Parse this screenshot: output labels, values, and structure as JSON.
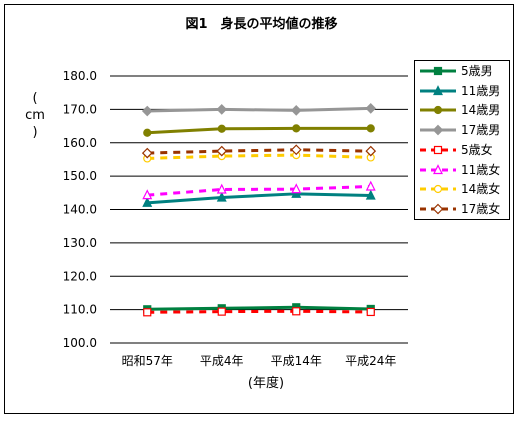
{
  "chart_data": {
    "type": "line",
    "title": "図1　身長の平均値の推移",
    "ylabel": "cm",
    "ylabel_open": "(",
    "ylabel_close": ")",
    "xlabel": "(年度)",
    "categories": [
      "昭和57年",
      "平成4年",
      "平成14年",
      "平成24年"
    ],
    "ylim": [
      100,
      180
    ],
    "yticks": [
      "100.0",
      "110.0",
      "120.0",
      "130.0",
      "140.0",
      "150.0",
      "160.0",
      "170.0",
      "180.0"
    ],
    "grid": "horizontal",
    "legend_position": "right",
    "series": [
      {
        "name": "5歳男",
        "values": [
          110.1,
          110.4,
          110.7,
          110.2
        ],
        "color": "#008040",
        "marker": "square",
        "dash": "solid",
        "filled": true
      },
      {
        "name": "11歳男",
        "values": [
          142.0,
          143.6,
          144.7,
          144.2
        ],
        "color": "#008080",
        "marker": "triangle",
        "dash": "solid",
        "filled": true
      },
      {
        "name": "14歳男",
        "values": [
          163.0,
          164.2,
          164.3,
          164.3
        ],
        "color": "#808000",
        "marker": "circle",
        "dash": "solid",
        "filled": true
      },
      {
        "name": "17歳男",
        "values": [
          169.5,
          170.0,
          169.7,
          170.3
        ],
        "color": "#969696",
        "marker": "diamond",
        "dash": "solid",
        "filled": true
      },
      {
        "name": "5歳女",
        "values": [
          109.2,
          109.4,
          109.5,
          109.3
        ],
        "color": "#ff0000",
        "marker": "square",
        "dash": "dashed",
        "filled": false
      },
      {
        "name": "11歳女",
        "values": [
          144.3,
          146.0,
          146.1,
          146.9
        ],
        "color": "#ff00ff",
        "marker": "triangle",
        "dash": "dashed",
        "filled": false
      },
      {
        "name": "14歳女",
        "values": [
          155.3,
          156.0,
          156.3,
          155.6
        ],
        "color": "#ffcc00",
        "marker": "circle",
        "dash": "dashed",
        "filled": false
      },
      {
        "name": "17歳女",
        "values": [
          156.9,
          157.5,
          157.9,
          157.5
        ],
        "color": "#993300",
        "marker": "diamond",
        "dash": "dashed",
        "filled": false
      }
    ]
  }
}
